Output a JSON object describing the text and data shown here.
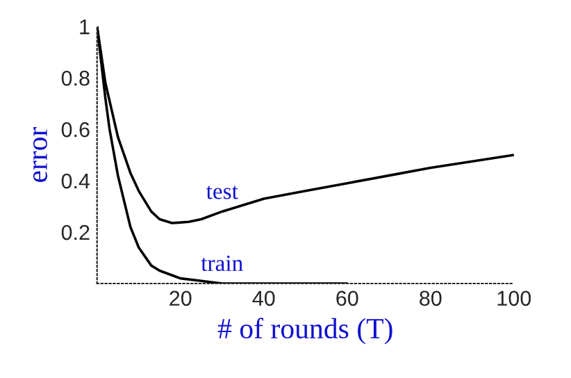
{
  "chart_data": {
    "type": "line",
    "xlabel": "# of rounds (T)",
    "ylabel": "error",
    "xlim": [
      0,
      100
    ],
    "ylim": [
      0,
      1
    ],
    "xticks": [
      20,
      40,
      60,
      80,
      100
    ],
    "yticks": [
      0.2,
      0.4,
      0.6,
      0.8,
      1
    ],
    "grid": false,
    "legend": false,
    "marker": "none",
    "line_style": "solid",
    "series": [
      {
        "name": "test",
        "color": "#000000",
        "x": [
          0,
          2,
          5,
          8,
          10,
          13,
          15,
          18,
          22,
          25,
          30,
          40,
          50,
          60,
          70,
          80,
          90,
          100
        ],
        "values": [
          1.0,
          0.78,
          0.57,
          0.43,
          0.36,
          0.28,
          0.25,
          0.235,
          0.24,
          0.25,
          0.28,
          0.33,
          0.36,
          0.39,
          0.42,
          0.45,
          0.475,
          0.5
        ]
      },
      {
        "name": "train",
        "color": "#000000",
        "x": [
          0,
          2,
          3,
          5,
          8,
          10,
          13,
          15,
          20,
          25,
          30,
          40,
          60
        ],
        "values": [
          1.0,
          0.72,
          0.6,
          0.42,
          0.22,
          0.14,
          0.07,
          0.05,
          0.02,
          0.01,
          0.0,
          0.0,
          0.0
        ]
      }
    ]
  }
}
